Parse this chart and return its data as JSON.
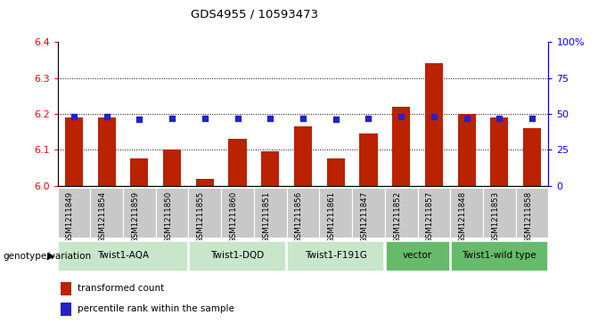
{
  "title": "GDS4955 / 10593473",
  "samples": [
    "GSM1211849",
    "GSM1211854",
    "GSM1211859",
    "GSM1211850",
    "GSM1211855",
    "GSM1211860",
    "GSM1211851",
    "GSM1211856",
    "GSM1211861",
    "GSM1211847",
    "GSM1211852",
    "GSM1211857",
    "GSM1211848",
    "GSM1211853",
    "GSM1211858"
  ],
  "transformed_counts": [
    6.19,
    6.19,
    6.075,
    6.1,
    6.02,
    6.13,
    6.095,
    6.165,
    6.075,
    6.145,
    6.22,
    6.34,
    6.2,
    6.19,
    6.16
  ],
  "percentile_ranks": [
    48,
    48,
    46,
    47,
    47,
    47,
    47,
    47,
    46,
    47,
    48,
    48,
    47,
    47,
    47
  ],
  "groups": [
    {
      "label": "Twist1-AQA",
      "indices": [
        0,
        1,
        2,
        3
      ],
      "color": "#c8e6c9"
    },
    {
      "label": "Twist1-DQD",
      "indices": [
        4,
        5,
        6
      ],
      "color": "#c8e6c9"
    },
    {
      "label": "Twist1-F191G",
      "indices": [
        7,
        8,
        9
      ],
      "color": "#c8e6c9"
    },
    {
      "label": "vector",
      "indices": [
        10,
        11
      ],
      "color": "#66bb6a"
    },
    {
      "label": "Twist1-wild type",
      "indices": [
        12,
        13,
        14
      ],
      "color": "#66bb6a"
    }
  ],
  "ylim_left": [
    6.0,
    6.4
  ],
  "ylim_right": [
    0,
    100
  ],
  "yticks_left": [
    6.0,
    6.1,
    6.2,
    6.3,
    6.4
  ],
  "yticks_right": [
    0,
    25,
    50,
    75,
    100
  ],
  "ytick_labels_right": [
    "0",
    "25",
    "50",
    "75",
    "100%"
  ],
  "bar_color": "#bb2200",
  "percentile_color": "#2222cc",
  "bar_width": 0.55,
  "legend_items": [
    {
      "label": "transformed count",
      "color": "#bb2200"
    },
    {
      "label": "percentile rank within the sample",
      "color": "#2222cc"
    }
  ],
  "genotype_label": "genotype/variation",
  "sample_bg_color": "#c8c8c8",
  "grid_lines": [
    6.1,
    6.2,
    6.3
  ]
}
